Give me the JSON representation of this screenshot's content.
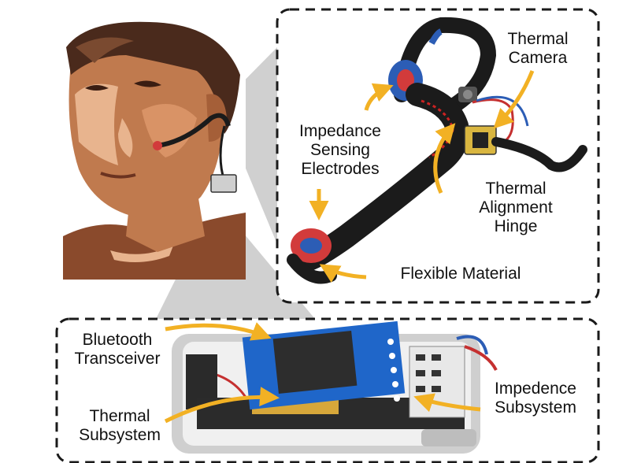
{
  "labels": {
    "thermal_camera": [
      "Thermal",
      "Camera"
    ],
    "impedance_electrodes": [
      "Impedance",
      "Sensing",
      "Electrodes"
    ],
    "thermal_hinge": [
      "Thermal",
      "Alignment",
      "Hinge"
    ],
    "flexible_material": [
      "Flexible Material"
    ],
    "bluetooth": [
      "Bluetooth",
      "Transceiver"
    ],
    "thermal_subsystem": [
      "Thermal",
      "Subsystem"
    ],
    "impedance_subsystem": [
      "Impedence",
      "Subsystem"
    ]
  },
  "colors": {
    "arrow": "#f2b124",
    "callout_border": "#1a1a1a",
    "projection": "#c8c8c8",
    "skin_dark": "#8a4a2c",
    "skin_mid": "#c07a4e",
    "skin_light": "#e8b48e",
    "hair": "#4a2a1c",
    "strap": "#1b1b1b",
    "electrode_red": "#d23b3b",
    "electrode_blue": "#2c5db5",
    "pcb_blue": "#1f66c9",
    "case_grey": "#cfcfcf"
  },
  "icons": [
    "person-illustration",
    "headset-photo",
    "pcb-photo"
  ]
}
